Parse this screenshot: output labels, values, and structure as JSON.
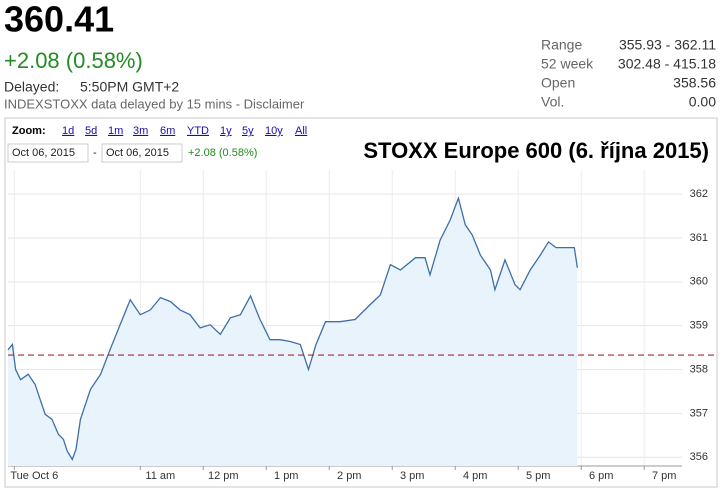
{
  "header": {
    "price": "360.41",
    "change": "+2.08 (0.58%)",
    "delayed_label": "Delayed:",
    "delayed_time": "5:50PM GMT+2",
    "source_note": "INDEXSTOXX data delayed by 15 mins - Disclaimer"
  },
  "stats": {
    "rows": [
      [
        "Range",
        "355.93 - 362.11"
      ],
      [
        "52 week",
        "302.48 - 415.18"
      ],
      [
        "Open",
        "358.56"
      ],
      [
        "Vol.",
        "0.00"
      ]
    ]
  },
  "controls": {
    "zoom_label": "Zoom:",
    "zoom_options": [
      "1d",
      "5d",
      "1m",
      "3m",
      "6m",
      "YTD",
      "1y",
      "5y",
      "10y",
      "All"
    ],
    "from_date": "Oct 06, 2015",
    "separator": "-",
    "to_date": "Oct 06, 2015",
    "change": "+2.08 (0.58%)"
  },
  "chart_data": {
    "type": "area",
    "title": "STOXX Europe 600 (6. října 2015)",
    "x": [
      8.9,
      8.97,
      9.02,
      9.1,
      9.22,
      9.33,
      9.41,
      9.49,
      9.6,
      9.7,
      9.78,
      9.84,
      9.92,
      9.98,
      10.05,
      10.21,
      10.37,
      10.52,
      10.68,
      10.84,
      11.0,
      11.16,
      11.32,
      11.48,
      11.63,
      11.79,
      11.95,
      12.11,
      12.27,
      12.43,
      12.59,
      12.75,
      12.9,
      13.06,
      13.22,
      13.38,
      13.54,
      13.67,
      13.79,
      13.94,
      14.17,
      14.41,
      14.65,
      14.81,
      14.97,
      15.13,
      15.37,
      15.52,
      15.6,
      15.76,
      15.92,
      16.05,
      16.16,
      16.27,
      16.4,
      16.56,
      16.63,
      16.79,
      16.95,
      17.03,
      17.19,
      17.35,
      17.48,
      17.6,
      17.89,
      17.94
    ],
    "values": [
      358.45,
      358.57,
      358.0,
      357.77,
      357.89,
      357.66,
      357.32,
      356.98,
      356.86,
      356.52,
      356.41,
      356.14,
      355.95,
      356.18,
      356.86,
      357.55,
      357.89,
      358.45,
      359.02,
      359.59,
      359.25,
      359.36,
      359.64,
      359.55,
      359.36,
      359.25,
      358.95,
      359.02,
      358.8,
      359.18,
      359.25,
      359.68,
      359.14,
      358.68,
      358.68,
      358.64,
      358.57,
      358.0,
      358.57,
      359.09,
      359.09,
      359.14,
      359.48,
      359.7,
      360.39,
      360.27,
      360.55,
      360.55,
      360.16,
      360.95,
      361.41,
      361.91,
      361.3,
      361.07,
      360.61,
      360.27,
      359.82,
      360.5,
      359.93,
      359.82,
      360.27,
      360.61,
      360.91,
      360.78,
      360.78,
      360.32
    ],
    "color": "#3d6fa8",
    "fill_color": "#e9f3fc",
    "reference_line": 358.33,
    "reference_color": "#a52a2a",
    "xlim": [
      8.9,
      19.6
    ],
    "xticks": [
      {
        "value": 9,
        "label": "Tue Oct 6"
      },
      {
        "value": 11,
        "label": "11 am"
      },
      {
        "value": 12,
        "label": "12 pm"
      },
      {
        "value": 13,
        "label": "1 pm"
      },
      {
        "value": 14,
        "label": "2 pm"
      },
      {
        "value": 15,
        "label": "3 pm"
      },
      {
        "value": 16,
        "label": "4 pm"
      },
      {
        "value": 17,
        "label": "5 pm"
      },
      {
        "value": 18,
        "label": "6 pm"
      },
      {
        "value": 19,
        "label": "7 pm"
      }
    ],
    "ylim": [
      355.8,
      362.55
    ],
    "yticks": [
      356,
      357,
      358,
      359,
      360,
      361,
      362
    ],
    "grid": true
  }
}
